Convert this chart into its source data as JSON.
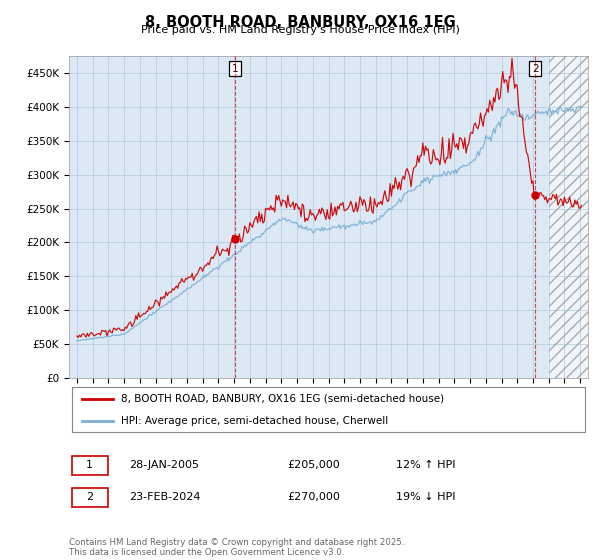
{
  "title": "8, BOOTH ROAD, BANBURY, OX16 1EG",
  "subtitle": "Price paid vs. HM Land Registry's House Price Index (HPI)",
  "ylim": [
    0,
    475000
  ],
  "yticks": [
    0,
    50000,
    100000,
    150000,
    200000,
    250000,
    300000,
    350000,
    400000,
    450000
  ],
  "ytick_labels": [
    "£0",
    "£50K",
    "£100K",
    "£150K",
    "£200K",
    "£250K",
    "£300K",
    "£350K",
    "£400K",
    "£450K"
  ],
  "xlim_start": 1994.5,
  "xlim_end": 2027.5,
  "red_color": "#cc0000",
  "blue_color": "#7aaed4",
  "marker1_x": 2005.08,
  "marker1_y": 205000,
  "marker2_x": 2024.15,
  "marker2_y": 270000,
  "legend_label_red": "8, BOOTH ROAD, BANBURY, OX16 1EG (semi-detached house)",
  "legend_label_blue": "HPI: Average price, semi-detached house, Cherwell",
  "annotation1_label": "1",
  "annotation2_label": "2",
  "table_row1": [
    "1",
    "28-JAN-2005",
    "£205,000",
    "12% ↑ HPI"
  ],
  "table_row2": [
    "2",
    "23-FEB-2024",
    "£270,000",
    "19% ↓ HPI"
  ],
  "footer": "Contains HM Land Registry data © Crown copyright and database right 2025.\nThis data is licensed under the Open Government Licence v3.0.",
  "chart_bg": "#dce9f5",
  "grid_color": "#b8cfe0",
  "hatch_start": 2025.0,
  "seed": 17
}
